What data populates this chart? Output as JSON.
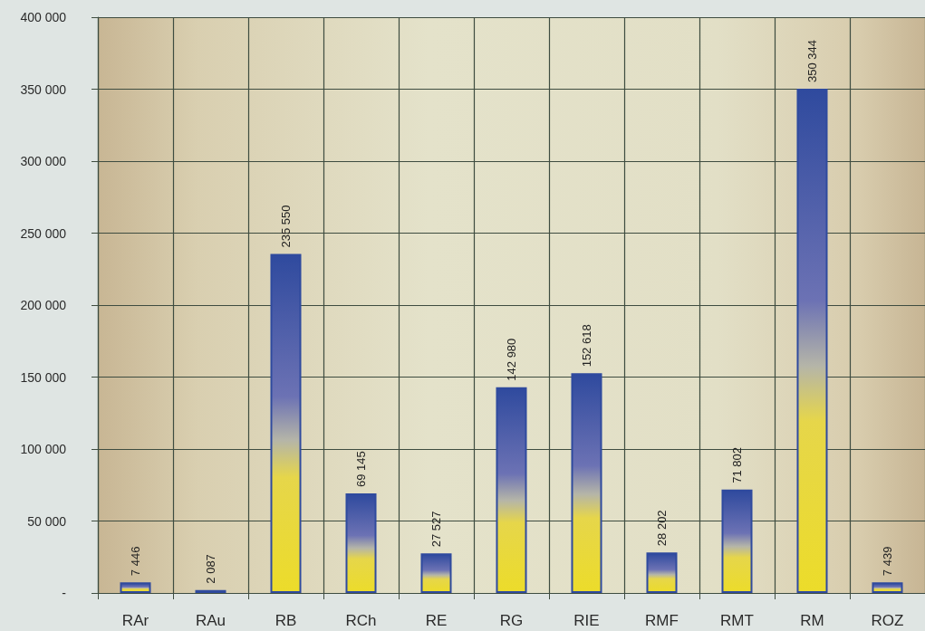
{
  "chart_data": {
    "type": "bar",
    "categories": [
      "RAr",
      "RAu",
      "RB",
      "RCh",
      "RE",
      "RG",
      "RIE",
      "RMF",
      "RMT",
      "RM",
      "ROZ"
    ],
    "values": [
      7446,
      2087,
      235550,
      69145,
      27527,
      142980,
      152618,
      28202,
      71802,
      350344,
      7439
    ],
    "value_labels": [
      "7 446",
      "2 087",
      "235 550",
      "69 145",
      "27 527",
      "142 980",
      "152 618",
      "28 202",
      "71 802",
      "350 344",
      "7 439"
    ],
    "color": "#2f4a9e",
    "ylim": [
      0,
      400000
    ],
    "yticks": [
      {
        "value": 0,
        "label": "-"
      },
      {
        "value": 50000,
        "label": "50 000"
      },
      {
        "value": 100000,
        "label": "100 000"
      },
      {
        "value": 150000,
        "label": "150 000"
      },
      {
        "value": 200000,
        "label": "200 000"
      },
      {
        "value": 250000,
        "label": "250 000"
      },
      {
        "value": 300000,
        "label": "300 000"
      },
      {
        "value": 350000,
        "label": "350 000"
      },
      {
        "value": 400000,
        "label": "400 000"
      }
    ],
    "grid": true
  }
}
